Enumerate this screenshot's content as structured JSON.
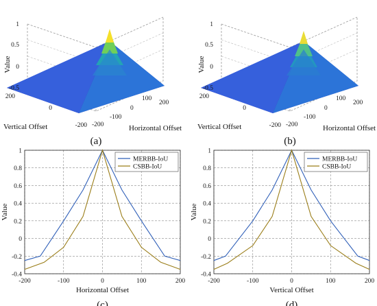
{
  "colors": {
    "merbb": "#2f5fb8",
    "csbb": "#9a7d18",
    "grid": "#8a8a8a",
    "axis": "#222222",
    "surface_low": "#3a1f9e",
    "surface_mid": "#1f9fb0",
    "surface_high": "#f5e02a"
  },
  "chart_data": [
    {
      "type": "surface3d",
      "panel_label": "(a)",
      "zlabel": "Value",
      "xlabel": "Horizontal Offset",
      "ylabel": "Vertical Offset",
      "x_ticks": [
        "-200",
        "-100",
        "0",
        "100",
        "200"
      ],
      "y_ticks": [
        "200",
        "0",
        "-200"
      ],
      "z_ticks": [
        "1",
        "0.5",
        "0",
        "-0.5"
      ],
      "xlim": [
        -200,
        200
      ],
      "ylim": [
        -200,
        200
      ],
      "zlim": [
        -0.5,
        1
      ],
      "peak": {
        "x": 0,
        "y": 0,
        "z": 1
      },
      "floor_value": -0.35
    },
    {
      "type": "surface3d",
      "panel_label": "(b)",
      "zlabel": "Value",
      "xlabel": "Horizontal Offset",
      "ylabel": "Vertical Offset",
      "x_ticks": [
        "-200",
        "-100",
        "0",
        "100",
        "200"
      ],
      "y_ticks": [
        "200",
        "0",
        "-200"
      ],
      "z_ticks": [
        "1",
        "0.5",
        "0",
        "-0.5"
      ],
      "xlim": [
        -200,
        200
      ],
      "ylim": [
        -200,
        200
      ],
      "zlim": [
        -0.5,
        1
      ],
      "peak": {
        "x": 0,
        "y": 0,
        "z": 1
      },
      "floor_value": -0.35
    },
    {
      "type": "line",
      "panel_label": "(c)",
      "xlabel": "Horizontal Offset",
      "ylabel": "Value",
      "xlim": [
        -200,
        200
      ],
      "ylim": [
        -0.4,
        1
      ],
      "x_ticks": [
        "-200",
        "-100",
        "0",
        "100",
        "200"
      ],
      "y_ticks": [
        "1",
        "0.8",
        "0.6",
        "0.4",
        "0.2",
        "0",
        "-0.2",
        "-0.4"
      ],
      "grid": true,
      "legend": "top-right",
      "series": [
        {
          "name": "MERBB-IoU",
          "x": [
            -200,
            -160,
            -100,
            -50,
            0,
            50,
            100,
            160,
            200
          ],
          "values": [
            -0.25,
            -0.2,
            0.2,
            0.55,
            1,
            0.55,
            0.2,
            -0.2,
            -0.25
          ]
        },
        {
          "name": "CSBB-IoU",
          "x": [
            -200,
            -150,
            -100,
            -50,
            0,
            50,
            100,
            150,
            200
          ],
          "values": [
            -0.35,
            -0.27,
            -0.1,
            0.25,
            1,
            0.25,
            -0.1,
            -0.27,
            -0.35
          ]
        }
      ]
    },
    {
      "type": "line",
      "panel_label": "(d)",
      "xlabel": "Vertical Offset",
      "ylabel": "Value",
      "xlim": [
        -200,
        200
      ],
      "ylim": [
        -0.4,
        1
      ],
      "x_ticks": [
        "-200",
        "-100",
        "0",
        "100",
        "200"
      ],
      "y_ticks": [
        "1",
        "0.8",
        "0.6",
        "0.4",
        "0.2",
        "0",
        "-0.2",
        "-0.4"
      ],
      "grid": true,
      "legend": "top-right",
      "series": [
        {
          "name": "MERBB-IoU",
          "x": [
            -200,
            -170,
            -100,
            -50,
            0,
            50,
            100,
            170,
            200
          ],
          "values": [
            -0.25,
            -0.2,
            0.2,
            0.55,
            1,
            0.55,
            0.2,
            -0.2,
            -0.25
          ]
        },
        {
          "name": "CSBB-IoU",
          "x": [
            -200,
            -165,
            -100,
            -50,
            0,
            50,
            100,
            165,
            200
          ],
          "values": [
            -0.35,
            -0.28,
            -0.08,
            0.25,
            1,
            0.25,
            -0.08,
            -0.28,
            -0.35
          ]
        }
      ]
    }
  ]
}
